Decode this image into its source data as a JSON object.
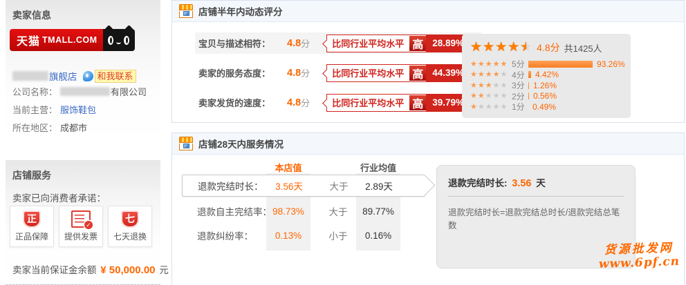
{
  "colors": {
    "accent_orange": "#ff6600",
    "badge_red": "#d0241d",
    "bar_orange": "#f97e23",
    "link_blue": "#3b6ac4",
    "tmall_red": "#c90505"
  },
  "sidebar": {
    "seller_info": {
      "title": "卖家信息",
      "logo": {
        "brand_cn": "天猫",
        "brand_en": "TMALL.COM"
      },
      "store": {
        "name_suffix": "旗舰店",
        "contact_label": "和我联系"
      },
      "fields": [
        {
          "label": "公司名称：",
          "blurred": true,
          "value": "有限公司",
          "link": false
        },
        {
          "label": "当前主营：",
          "blurred": false,
          "value": "服饰鞋包",
          "link": true
        },
        {
          "label": "所在地区：",
          "blurred": false,
          "value": "成都市",
          "link": false
        }
      ]
    },
    "store_service": {
      "title": "店铺服务",
      "promise_text": "卖家已向消费者承诺：",
      "badges": [
        {
          "label": "正品保障",
          "icon": "shield-zheng",
          "glyph": "正"
        },
        {
          "label": "提供发票",
          "icon": "invoice-doc",
          "glyph": ""
        },
        {
          "label": "七天退换",
          "icon": "shield-qi",
          "glyph": "七"
        }
      ],
      "deposit": {
        "label": "卖家当前保证金余额",
        "amount": "¥ 50,000.00",
        "unit": "元"
      }
    }
  },
  "rating_panel": {
    "title": "店铺半年内动态评分",
    "rows": [
      {
        "label": "宝贝与描述相符：",
        "score": "4.8",
        "unit": "分",
        "compare_text": "比同行业平均水平",
        "direction": "高",
        "percent": "28.89%",
        "highlighted": true
      },
      {
        "label": "卖家的服务态度：",
        "score": "4.8",
        "unit": "分",
        "compare_text": "比同行业平均水平",
        "direction": "高",
        "percent": "44.39%",
        "highlighted": false
      },
      {
        "label": "卖家发货的速度：",
        "score": "4.8",
        "unit": "分",
        "compare_text": "比同行业平均水平",
        "direction": "高",
        "percent": "39.79%",
        "highlighted": false
      }
    ],
    "summary": {
      "score": "4.8",
      "unit": "分",
      "total": "共1425人",
      "distribution": [
        {
          "label": "5分",
          "stars": 5,
          "value": 93.26,
          "percent": "93.26%"
        },
        {
          "label": "4分",
          "stars": 4,
          "value": 4.42,
          "percent": "4.42%"
        },
        {
          "label": "3分",
          "stars": 3,
          "value": 1.26,
          "percent": "1.26%"
        },
        {
          "label": "2分",
          "stars": 2,
          "value": 0.56,
          "percent": "0.56%"
        },
        {
          "label": "1分",
          "stars": 1,
          "value": 0.49,
          "percent": "0.49%"
        }
      ]
    }
  },
  "service_panel": {
    "title": "店铺28天内服务情况",
    "columns": {
      "store": "本店值",
      "industry": "行业均值"
    },
    "rows": [
      {
        "label": "退款完结时长：",
        "store_value": "3.56天",
        "compare": "大于",
        "industry_value": "2.89天",
        "selected": true
      },
      {
        "label": "退款自主完结率：",
        "store_value": "98.73%",
        "compare": "大于",
        "industry_value": "89.77%",
        "selected": false
      },
      {
        "label": "退款纠纷率：",
        "store_value": "0.13%",
        "compare": "小于",
        "industry_value": "0.16%",
        "selected": false
      }
    ],
    "detail": {
      "title_label": "退款完结时长:",
      "value": "3.56",
      "unit": "天",
      "formula": "退款完结时长=退款完结总时长/退款完结总笔数"
    }
  },
  "watermark": {
    "line1": "货源批发网",
    "line2": "www.6pf.cn"
  }
}
